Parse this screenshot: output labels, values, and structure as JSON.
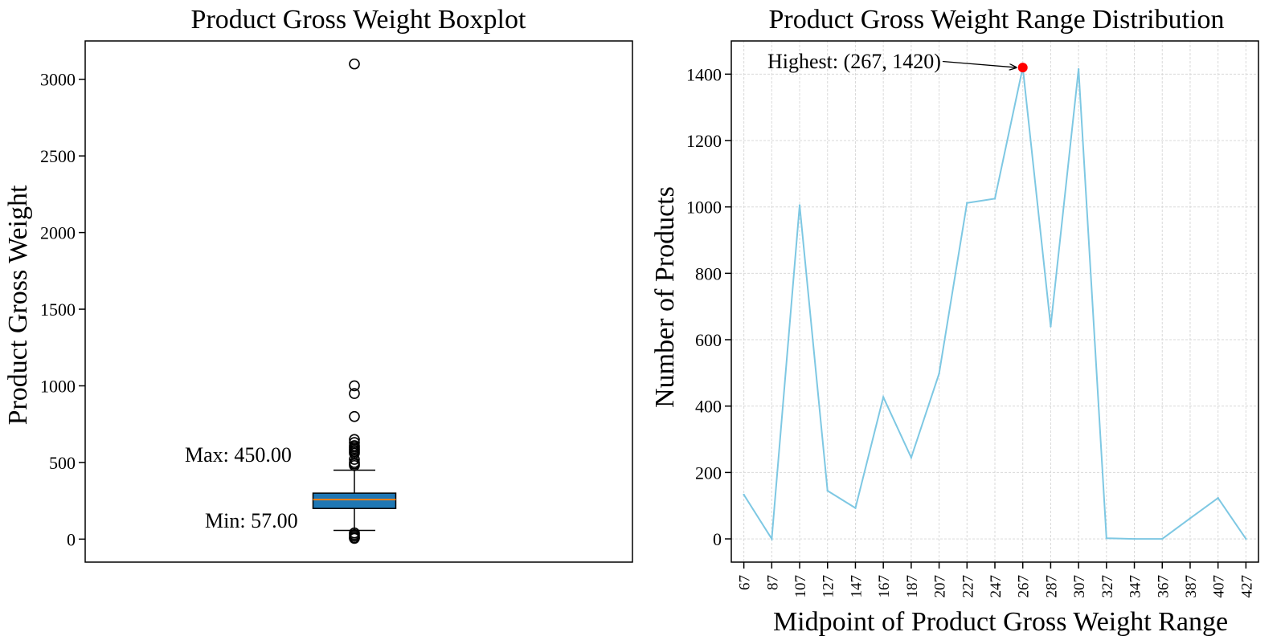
{
  "chart_data": [
    {
      "type": "box",
      "title": "Product Gross Weight Boxplot",
      "ylabel": "Product Gross Weight",
      "xlabel": "",
      "ylim": [
        -150,
        3250
      ],
      "yticks": [
        0,
        500,
        1000,
        1500,
        2000,
        2500,
        3000
      ],
      "box": {
        "q1": 200,
        "median": 258,
        "q3": 300,
        "whisker_low": 57,
        "whisker_high": 450,
        "fill": "#1f77b4",
        "median_color": "#ff7f0e"
      },
      "outliers": [
        3100,
        1000,
        950,
        800,
        650,
        630,
        610,
        600,
        590,
        580,
        570,
        560,
        520,
        500,
        490,
        480,
        40,
        30,
        20,
        10,
        5
      ],
      "annotations": [
        {
          "text": "Max: 450.00"
        },
        {
          "text": "Min: 57.00"
        }
      ]
    },
    {
      "type": "line",
      "title": "Product Gross Weight Range Distribution",
      "xlabel": "Midpoint of Product Gross Weight Range",
      "ylabel": "Number of  Products",
      "x": [
        67,
        87,
        107,
        127,
        147,
        167,
        187,
        207,
        227,
        247,
        267,
        287,
        307,
        327,
        347,
        367,
        387,
        407,
        427
      ],
      "values": [
        133,
        0,
        1005,
        145,
        93,
        427,
        245,
        498,
        1012,
        1025,
        1420,
        640,
        1415,
        2,
        0,
        0,
        62,
        123,
        0
      ],
      "xlim": [
        58,
        436
      ],
      "ylim": [
        -70,
        1500
      ],
      "yticks": [
        0,
        200,
        400,
        600,
        800,
        1000,
        1200,
        1400
      ],
      "line_color": "#7ec8e3",
      "grid": true,
      "highlight": {
        "x": 267,
        "y": 1420,
        "color": "#ff0000",
        "label": "Highest: (267, 1420)"
      }
    }
  ]
}
